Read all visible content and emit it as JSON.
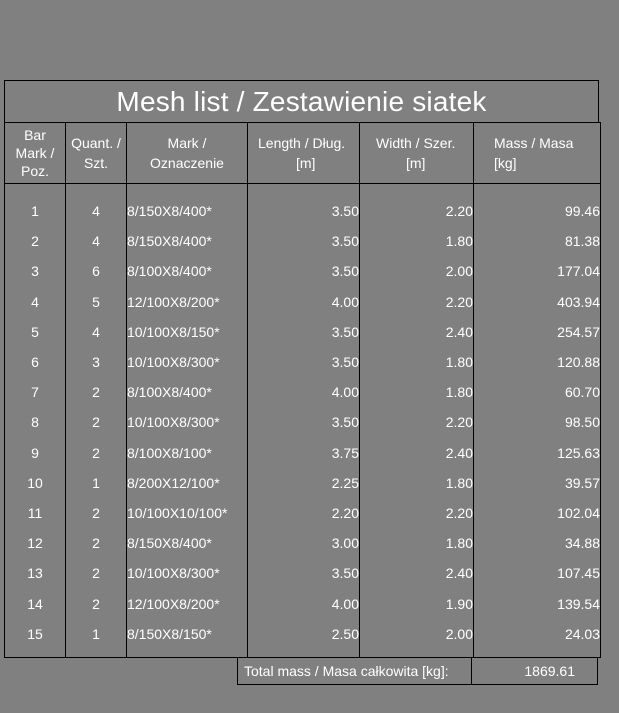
{
  "title": "Mesh list / Zestawienie siatek",
  "headers": {
    "pos": [
      "Bar",
      "Mark /",
      "Poz."
    ],
    "qty": [
      "Quant. /",
      "Szt."
    ],
    "mark": [
      "Mark /",
      "Oznaczenie"
    ],
    "length": [
      "Length / Dług.",
      "[m]"
    ],
    "width": [
      "Width / Szer.",
      "[m]"
    ],
    "mass": [
      "Mass / Masa",
      "[kg]"
    ]
  },
  "rows": [
    {
      "pos": "1",
      "qty": "4",
      "mark": "8/150X8/400*",
      "length": "3.50",
      "width": "2.20",
      "mass": "99.46"
    },
    {
      "pos": "2",
      "qty": "4",
      "mark": "8/150X8/400*",
      "length": "3.50",
      "width": "1.80",
      "mass": "81.38"
    },
    {
      "pos": "3",
      "qty": "6",
      "mark": "8/100X8/400*",
      "length": "3.50",
      "width": "2.00",
      "mass": "177.04"
    },
    {
      "pos": "4",
      "qty": "5",
      "mark": "12/100X8/200*",
      "length": "4.00",
      "width": "2.20",
      "mass": "403.94"
    },
    {
      "pos": "5",
      "qty": "4",
      "mark": "10/100X8/150*",
      "length": "3.50",
      "width": "2.40",
      "mass": "254.57"
    },
    {
      "pos": "6",
      "qty": "3",
      "mark": "10/100X8/300*",
      "length": "3.50",
      "width": "1.80",
      "mass": "120.88"
    },
    {
      "pos": "7",
      "qty": "2",
      "mark": "8/100X8/400*",
      "length": "4.00",
      "width": "1.80",
      "mass": "60.70"
    },
    {
      "pos": "8",
      "qty": "2",
      "mark": "10/100X8/300*",
      "length": "3.50",
      "width": "2.20",
      "mass": "98.50"
    },
    {
      "pos": "9",
      "qty": "2",
      "mark": "8/100X8/100*",
      "length": "3.75",
      "width": "2.40",
      "mass": "125.63"
    },
    {
      "pos": "10",
      "qty": "1",
      "mark": "8/200X12/100*",
      "length": "2.25",
      "width": "1.80",
      "mass": "39.57"
    },
    {
      "pos": "11",
      "qty": "2",
      "mark": "10/100X10/100*",
      "length": "2.20",
      "width": "2.20",
      "mass": "102.04"
    },
    {
      "pos": "12",
      "qty": "2",
      "mark": "8/150X8/400*",
      "length": "3.00",
      "width": "1.80",
      "mass": "34.88"
    },
    {
      "pos": "13",
      "qty": "2",
      "mark": "10/100X8/300*",
      "length": "3.50",
      "width": "2.40",
      "mass": "107.45"
    },
    {
      "pos": "14",
      "qty": "2",
      "mark": "12/100X8/200*",
      "length": "4.00",
      "width": "1.90",
      "mass": "139.54"
    },
    {
      "pos": "15",
      "qty": "1",
      "mark": "8/150X8/150*",
      "length": "2.50",
      "width": "2.00",
      "mass": "24.03"
    }
  ],
  "total": {
    "label": "Total mass / Masa całkowita [kg]:",
    "value": "1869.61"
  }
}
